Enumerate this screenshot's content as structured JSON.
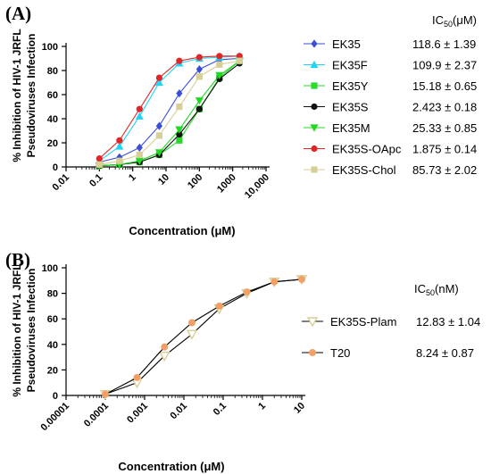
{
  "chart_data": [
    {
      "panel": "(A)",
      "type": "line",
      "xscale": "log",
      "xlabel": "Concentration (μM)",
      "ylabel_lines": [
        "% Inhibition of HIV-1 JRFL",
        "Pseudoviruses Infection"
      ],
      "xticks": [
        "0.01",
        "0.1",
        "1",
        "10",
        "100",
        "1000",
        "10,000"
      ],
      "xlim": [
        0.01,
        10000
      ],
      "yticks": [
        "0",
        "20",
        "40",
        "60",
        "80",
        "100"
      ],
      "ylim": [
        0,
        100
      ],
      "legend_header_base": "IC",
      "legend_header_sub": "50",
      "legend_header_unit": "(μM)",
      "legend_position": "right",
      "grid": false,
      "x": [
        0.1,
        0.4,
        1.6,
        6.25,
        25,
        100,
        400,
        1600
      ],
      "series": [
        {
          "name": "EK35",
          "ic50": "118.6 ± 1.39",
          "color": "#3b4fd6",
          "marker": "diamond",
          "values": [
            4,
            8,
            16,
            34,
            61,
            81,
            89,
            90
          ]
        },
        {
          "name": "EK35F",
          "ic50": "109.9 ± 2.37",
          "color": "#22d4f2",
          "marker": "triangle-up",
          "values": [
            5,
            17,
            42,
            70,
            86,
            90,
            91,
            92
          ]
        },
        {
          "name": "EK35Y",
          "ic50": "15.18 ± 0.65",
          "color": "#2bd82b",
          "marker": "square",
          "values": [
            1,
            2,
            4,
            10,
            22,
            48,
            74,
            88
          ]
        },
        {
          "name": "EK35S",
          "ic50": "2.423 ± 0.18",
          "color": "#111111",
          "marker": "circle",
          "values": [
            1,
            2,
            4,
            10,
            27,
            48,
            73,
            86
          ]
        },
        {
          "name": "EK35M",
          "ic50": "25.33 ± 0.85",
          "color": "#22d822",
          "marker": "triangle-down",
          "values": [
            1,
            2,
            5,
            12,
            31,
            55,
            76,
            88
          ]
        },
        {
          "name": "EK35S-OApc",
          "ic50": "1.875 ± 0.14",
          "color": "#e02626",
          "marker": "circle",
          "values": [
            7,
            22,
            48,
            74,
            88,
            91,
            92,
            92
          ]
        },
        {
          "name": "EK35S-Chol",
          "ic50": "85.73 ± 2.02",
          "color": "#d8cf98",
          "marker": "square",
          "values": [
            2,
            5,
            10,
            26,
            50,
            75,
            85,
            88
          ]
        }
      ]
    },
    {
      "panel": "(B)",
      "type": "line",
      "xscale": "log",
      "xlabel": "Concentration (μM)",
      "ylabel_lines": [
        "% Inhibition of HIV-1 JRFL",
        "Pseudoviruses Infection"
      ],
      "xticks": [
        "0.00001",
        "0.0001",
        "0.001",
        "0.01",
        "0.1",
        "1",
        "10"
      ],
      "xlim": [
        1e-05,
        10
      ],
      "yticks": [
        "0",
        "20",
        "40",
        "60",
        "80",
        "100"
      ],
      "ylim": [
        0,
        100
      ],
      "legend_header_base": "IC",
      "legend_header_sub": "50",
      "legend_header_unit": "(nM)",
      "legend_position": "right",
      "grid": false,
      "x": [
        0.0001,
        0.00064,
        0.0032,
        0.016,
        0.08,
        0.4,
        2.0,
        10.0
      ],
      "x_scaled_note": "",
      "series": [
        {
          "name": "EK35S-Plam",
          "ic50": "12.83 ± 1.04",
          "color": "#d8cf98",
          "marker": "triangle-down",
          "values": [
            1,
            10,
            31,
            48,
            68,
            80,
            89,
            91
          ]
        },
        {
          "name": "T20",
          "ic50": "8.24 ± 0.87",
          "color": "#f2a066",
          "marker": "circle",
          "values": [
            1,
            14,
            38,
            57,
            70,
            81,
            89,
            91
          ]
        }
      ]
    }
  ]
}
